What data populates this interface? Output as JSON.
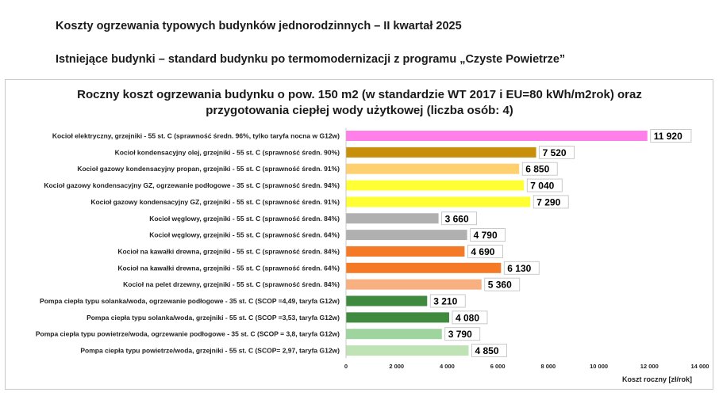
{
  "page": {
    "heading": "Koszty ogrzewania typowych budynków jednorodzinnych – II kwartał 2025",
    "subheading": "Istniejące budynki – standard budynku po termomodernizacji z programu „Czyste Powietrze”"
  },
  "chart_data": {
    "type": "bar",
    "orientation": "horizontal",
    "title_line1": "Roczny koszt ogrzewania budynku o pow. 150 m2 (w standardzie WT 2017 i EU=80 kWh/m2rok) oraz",
    "title_line2": "przygotowania ciepłej wody użytkowej (liczba osób: 4)",
    "xlabel": "Koszt roczny [zł/rok]",
    "ylabel": "",
    "xlim": [
      0,
      14000
    ],
    "xticks": [
      0,
      2000,
      4000,
      6000,
      8000,
      10000,
      12000,
      14000
    ],
    "xtick_labels": [
      "0",
      "2 000",
      "4 000",
      "6 000",
      "8 000",
      "10 000",
      "12 000",
      "14 000"
    ],
    "grid": false,
    "legend": "none",
    "categories": [
      "Kocioł  elektryczny,  grzejniki - 55 st. C  (sprawność średn. 96%, tylko taryfa nocna w G12w)",
      "Kocioł  kondensacyjny olej,  grzejniki - 55 st. C (sprawność średn. 90%)",
      "Kocioł gazowy kondensacyjny propan, grzejniki - 55 st. C (sprawność średn. 91%)",
      "Kocioł gazowy kondensacyjny GZ, ogrzewanie podłogowe - 35 st. C (sprawność średn. 94%)",
      "Kocioł gazowy kondensacyjny GZ, grzejniki - 55 st. C (sprawność średn. 91%)",
      "Kocioł węglowy,  grzejniki - 55 st. C (sprawność średn. 84%)",
      "Kocioł węglowy,  grzejniki - 55 st. C (sprawność średn. 64%)",
      "Kocioł na kawałki drewna, grzejniki - 55 st. C (sprawność średn. 84%)",
      "Kocioł na kawałki drewna, grzejniki - 55 st. C (sprawność średn. 64%)",
      "Kocioł na pelet drzewny, grzejniki - 55 st. C (sprawność średn. 84%)",
      "Pompa ciepła typu solanka/woda, ogrzewanie podłogowe - 35 st. C (SCOP =4,49, taryfa G12w)",
      "Pompa ciepła typu solanka/woda, grzejniki - 55 st. C (SCOP =3,53, taryfa G12w)",
      "Pompa ciepła typu powietrze/woda, ogrzewanie podłogowe - 35 st. C (SCOP = 3,8, taryfa G12w)",
      "Pompa ciepła typu powietrze/woda, grzejniki - 55 st. C (SCOP= 2,97, taryfa G12w)"
    ],
    "values": [
      11920,
      7520,
      6850,
      7040,
      7290,
      3660,
      4790,
      4690,
      6130,
      5360,
      3210,
      4080,
      3790,
      4850
    ],
    "value_labels": [
      "11 920",
      "7 520",
      "6 850",
      "7 040",
      "7 290",
      "3 660",
      "4 790",
      "4 690",
      "6 130",
      "5 360",
      "3 210",
      "4 080",
      "3 790",
      "4 850"
    ],
    "colors": [
      "#ff80e8",
      "#c8900a",
      "#ffd070",
      "#ffff33",
      "#ffff33",
      "#b0b0b0",
      "#b0b0b0",
      "#f57a28",
      "#f57a28",
      "#f8b080",
      "#3f8a3f",
      "#3f8a3f",
      "#9ed49e",
      "#bfe3b4"
    ]
  }
}
